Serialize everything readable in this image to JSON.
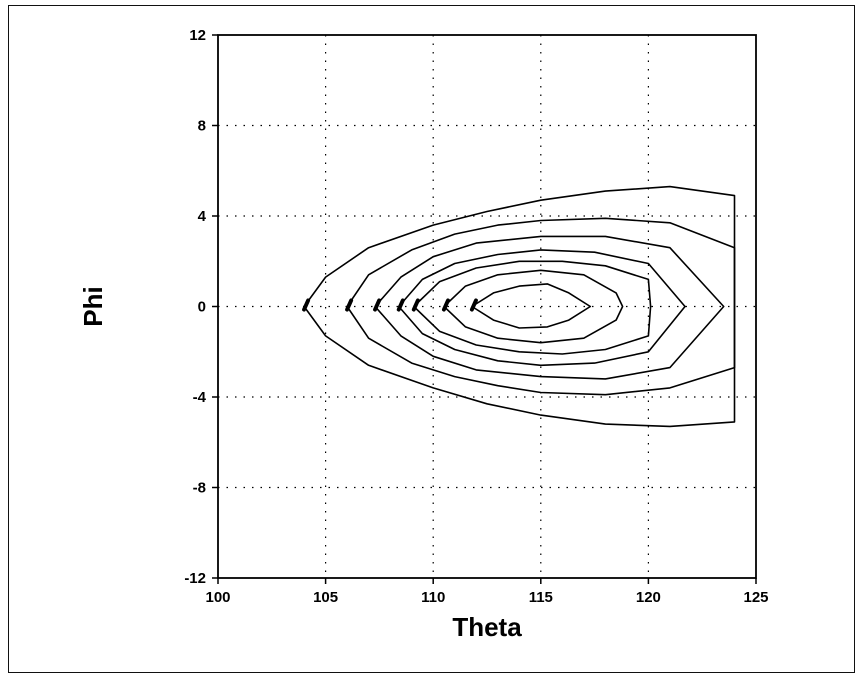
{
  "chart_data": {
    "type": "contour",
    "title": "",
    "xlabel": "Theta",
    "ylabel": "Phi",
    "xlim": [
      100,
      125
    ],
    "ylim": [
      -12,
      12
    ],
    "xticks": [
      100,
      105,
      110,
      115,
      120,
      125
    ],
    "yticks": [
      12,
      8,
      4,
      0,
      -4,
      -8,
      -12
    ],
    "grid": true,
    "grid_style": "dotted",
    "line_color": "#000000",
    "contours": [
      {
        "points": [
          [
            104,
            0
          ],
          [
            105,
            1.3
          ],
          [
            107,
            2.6
          ],
          [
            110,
            3.6
          ],
          [
            112.5,
            4.2
          ],
          [
            115,
            4.7
          ],
          [
            118,
            5.1
          ],
          [
            121,
            5.3
          ],
          [
            124,
            4.9
          ],
          [
            124,
            -5.1
          ],
          [
            121,
            -5.3
          ],
          [
            118,
            -5.2
          ],
          [
            115,
            -4.8
          ],
          [
            112.5,
            -4.3
          ],
          [
            110,
            -3.6
          ],
          [
            107,
            -2.6
          ],
          [
            105,
            -1.3
          ],
          [
            104,
            0
          ]
        ]
      },
      {
        "points": [
          [
            106,
            0
          ],
          [
            107,
            1.4
          ],
          [
            109,
            2.5
          ],
          [
            111,
            3.2
          ],
          [
            113,
            3.6
          ],
          [
            115,
            3.8
          ],
          [
            118,
            3.9
          ],
          [
            121,
            3.7
          ],
          [
            124,
            2.6
          ],
          [
            124,
            -2.7
          ],
          [
            121,
            -3.6
          ],
          [
            118,
            -3.9
          ],
          [
            115,
            -3.8
          ],
          [
            113,
            -3.5
          ],
          [
            111,
            -3.1
          ],
          [
            109,
            -2.5
          ],
          [
            107,
            -1.4
          ],
          [
            106,
            0
          ]
        ]
      },
      {
        "points": [
          [
            107.3,
            0
          ],
          [
            108.5,
            1.3
          ],
          [
            110,
            2.2
          ],
          [
            112,
            2.8
          ],
          [
            115,
            3.1
          ],
          [
            118,
            3.1
          ],
          [
            121,
            2.6
          ],
          [
            123.5,
            0
          ],
          [
            121,
            -2.7
          ],
          [
            118,
            -3.2
          ],
          [
            115,
            -3.1
          ],
          [
            112,
            -2.8
          ],
          [
            110,
            -2.2
          ],
          [
            108.5,
            -1.3
          ],
          [
            107.3,
            0
          ]
        ]
      },
      {
        "points": [
          [
            108.4,
            0
          ],
          [
            109.5,
            1.2
          ],
          [
            111,
            1.9
          ],
          [
            113,
            2.3
          ],
          [
            115,
            2.5
          ],
          [
            117.5,
            2.4
          ],
          [
            120,
            1.9
          ],
          [
            121.7,
            0
          ],
          [
            120,
            -2.0
          ],
          [
            117.5,
            -2.5
          ],
          [
            115,
            -2.6
          ],
          [
            113,
            -2.4
          ],
          [
            111,
            -1.9
          ],
          [
            109.5,
            -1.2
          ],
          [
            108.4,
            0
          ]
        ]
      },
      {
        "points": [
          [
            109.1,
            0
          ],
          [
            110.3,
            1.1
          ],
          [
            112,
            1.7
          ],
          [
            114,
            2.0
          ],
          [
            116,
            2.0
          ],
          [
            118,
            1.8
          ],
          [
            120,
            1.2
          ],
          [
            120.1,
            0
          ],
          [
            120,
            -1.3
          ],
          [
            118,
            -1.9
          ],
          [
            116,
            -2.1
          ],
          [
            114,
            -2.0
          ],
          [
            112,
            -1.7
          ],
          [
            110.3,
            -1.1
          ],
          [
            109.1,
            0
          ]
        ]
      },
      {
        "points": [
          [
            110.5,
            0
          ],
          [
            111.5,
            0.9
          ],
          [
            113,
            1.4
          ],
          [
            115,
            1.6
          ],
          [
            117,
            1.4
          ],
          [
            118.5,
            0.6
          ],
          [
            118.8,
            0
          ],
          [
            118.5,
            -0.6
          ],
          [
            117,
            -1.4
          ],
          [
            115,
            -1.6
          ],
          [
            113,
            -1.4
          ],
          [
            111.5,
            -0.9
          ],
          [
            110.5,
            0
          ]
        ]
      },
      {
        "points": [
          [
            111.8,
            0
          ],
          [
            112.8,
            0.6
          ],
          [
            114,
            0.9
          ],
          [
            115.3,
            1.0
          ],
          [
            116.3,
            0.6
          ],
          [
            117.3,
            0
          ],
          [
            116.3,
            -0.6
          ],
          [
            115.3,
            -0.9
          ],
          [
            114,
            -0.95
          ],
          [
            112.8,
            -0.6
          ],
          [
            111.8,
            0
          ]
        ]
      }
    ]
  }
}
